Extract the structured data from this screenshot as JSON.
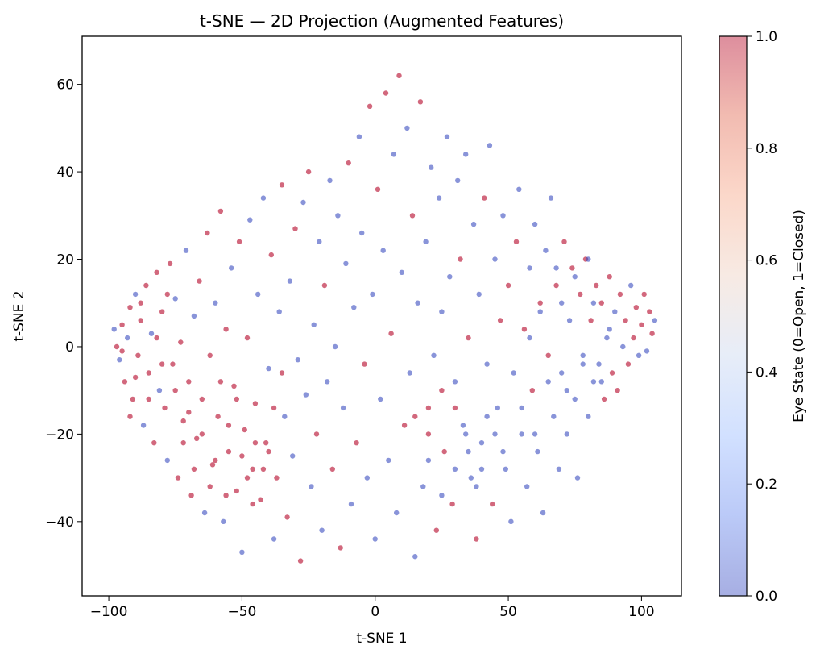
{
  "chart_data": {
    "type": "scatter",
    "title": "t-SNE — 2D Projection (Augmented Features)",
    "xlabel": "t-SNE 1",
    "ylabel": "t-SNE 2",
    "xlim": [
      -110,
      115
    ],
    "ylim": [
      -57,
      71
    ],
    "xticks": [
      -100,
      -50,
      0,
      50,
      100
    ],
    "yticks": [
      -40,
      -20,
      0,
      20,
      40,
      60
    ],
    "xtick_labels": [
      "−100",
      "−50",
      "0",
      "50",
      "100"
    ],
    "ytick_labels": [
      "−40",
      "−20",
      "0",
      "20",
      "40",
      "60"
    ],
    "grid": false,
    "point_alpha": 0.6,
    "colorbar": {
      "label": "Eye State (0=Open, 1=Closed)",
      "range": [
        0,
        1
      ],
      "ticks": [
        0.0,
        0.2,
        0.4,
        0.6,
        0.8,
        1.0
      ],
      "tick_labels": [
        "0.0",
        "0.2",
        "0.4",
        "0.6",
        "0.8",
        "1.0"
      ],
      "colormap": "coolwarm",
      "colors": [
        "#3b4cc0",
        "#6788ee",
        "#9abbff",
        "#c9d7f0",
        "#edd1c2",
        "#f7a889",
        "#e26952",
        "#b40426"
      ]
    },
    "series": [
      {
        "values": [
          [
            -98,
            4,
            0
          ],
          [
            -97,
            0,
            1
          ],
          [
            -96,
            -3,
            0
          ],
          [
            -95,
            5,
            1
          ],
          [
            -94,
            -8,
            1
          ],
          [
            -93,
            2,
            0
          ],
          [
            -92,
            9,
            1
          ],
          [
            -91,
            -12,
            1
          ],
          [
            -90,
            12,
            0
          ],
          [
            -89,
            -2,
            1
          ],
          [
            -88,
            6,
            1
          ],
          [
            -87,
            -18,
            0
          ],
          [
            -86,
            14,
            1
          ],
          [
            -85,
            -6,
            1
          ],
          [
            -84,
            3,
            0
          ],
          [
            -83,
            -22,
            1
          ],
          [
            -82,
            17,
            1
          ],
          [
            -81,
            -10,
            0
          ],
          [
            -80,
            8,
            1
          ],
          [
            -79,
            -14,
            1
          ],
          [
            -78,
            -26,
            0
          ],
          [
            -77,
            19,
            1
          ],
          [
            -76,
            -4,
            1
          ],
          [
            -75,
            11,
            0
          ],
          [
            -74,
            -30,
            1
          ],
          [
            -73,
            1,
            1
          ],
          [
            -72,
            -17,
            1
          ],
          [
            -71,
            22,
            0
          ],
          [
            -70,
            -8,
            1
          ],
          [
            -69,
            -34,
            1
          ],
          [
            -68,
            7,
            0
          ],
          [
            -67,
            -21,
            1
          ],
          [
            -66,
            15,
            1
          ],
          [
            -65,
            -12,
            1
          ],
          [
            -64,
            -38,
            0
          ],
          [
            -63,
            26,
            1
          ],
          [
            -62,
            -2,
            1
          ],
          [
            -61,
            -27,
            1
          ],
          [
            -60,
            10,
            0
          ],
          [
            -59,
            -16,
            1
          ],
          [
            -58,
            31,
            1
          ],
          [
            -57,
            -40,
            0
          ],
          [
            -56,
            4,
            1
          ],
          [
            -55,
            -24,
            1
          ],
          [
            -54,
            18,
            0
          ],
          [
            -53,
            -9,
            1
          ],
          [
            -52,
            -33,
            1
          ],
          [
            -51,
            24,
            1
          ],
          [
            -50,
            -47,
            0
          ],
          [
            -49,
            -19,
            1
          ],
          [
            -48,
            2,
            1
          ],
          [
            -47,
            29,
            0
          ],
          [
            -46,
            -28,
            1
          ],
          [
            -45,
            -13,
            1
          ],
          [
            -44,
            12,
            0
          ],
          [
            -43,
            -35,
            1
          ],
          [
            -42,
            34,
            0
          ],
          [
            -41,
            -22,
            1
          ],
          [
            -40,
            -5,
            0
          ],
          [
            -39,
            21,
            1
          ],
          [
            -38,
            -44,
            0
          ],
          [
            -37,
            -30,
            1
          ],
          [
            -36,
            8,
            0
          ],
          [
            -35,
            37,
            1
          ],
          [
            -34,
            -16,
            0
          ],
          [
            -33,
            -39,
            1
          ],
          [
            -32,
            15,
            0
          ],
          [
            -31,
            -25,
            0
          ],
          [
            -30,
            27,
            1
          ],
          [
            -29,
            -3,
            0
          ],
          [
            -28,
            -49,
            1
          ],
          [
            -27,
            33,
            0
          ],
          [
            -26,
            -11,
            0
          ],
          [
            -25,
            40,
            1
          ],
          [
            -24,
            -32,
            0
          ],
          [
            -23,
            5,
            0
          ],
          [
            -22,
            -20,
            1
          ],
          [
            -21,
            24,
            0
          ],
          [
            -20,
            -42,
            0
          ],
          [
            -19,
            14,
            1
          ],
          [
            -18,
            -8,
            0
          ],
          [
            -17,
            38,
            0
          ],
          [
            -16,
            -28,
            1
          ],
          [
            -15,
            0,
            0
          ],
          [
            -14,
            30,
            0
          ],
          [
            -13,
            -46,
            1
          ],
          [
            -12,
            -14,
            0
          ],
          [
            -11,
            19,
            0
          ],
          [
            -10,
            42,
            1
          ],
          [
            -9,
            -36,
            0
          ],
          [
            -8,
            9,
            0
          ],
          [
            -7,
            -22,
            1
          ],
          [
            -6,
            48,
            0
          ],
          [
            -5,
            26,
            0
          ],
          [
            -4,
            -4,
            1
          ],
          [
            -3,
            -30,
            0
          ],
          [
            -2,
            55,
            1
          ],
          [
            -1,
            12,
            0
          ],
          [
            0,
            -44,
            0
          ],
          [
            1,
            36,
            1
          ],
          [
            2,
            -12,
            0
          ],
          [
            3,
            22,
            0
          ],
          [
            4,
            58,
            1
          ],
          [
            5,
            -26,
            0
          ],
          [
            6,
            3,
            1
          ],
          [
            7,
            44,
            0
          ],
          [
            8,
            -38,
            0
          ],
          [
            9,
            62,
            1
          ],
          [
            10,
            17,
            0
          ],
          [
            11,
            -18,
            1
          ],
          [
            12,
            50,
            0
          ],
          [
            13,
            -6,
            0
          ],
          [
            14,
            30,
            1
          ],
          [
            15,
            -48,
            0
          ],
          [
            16,
            10,
            0
          ],
          [
            17,
            56,
            1
          ],
          [
            18,
            -32,
            0
          ],
          [
            19,
            24,
            0
          ],
          [
            20,
            -14,
            1
          ],
          [
            21,
            41,
            0
          ],
          [
            22,
            -2,
            0
          ],
          [
            23,
            -42,
            1
          ],
          [
            24,
            34,
            0
          ],
          [
            25,
            8,
            0
          ],
          [
            26,
            -24,
            1
          ],
          [
            27,
            48,
            0
          ],
          [
            28,
            16,
            0
          ],
          [
            29,
            -36,
            1
          ],
          [
            30,
            -8,
            0
          ],
          [
            31,
            38,
            0
          ],
          [
            32,
            20,
            1
          ],
          [
            33,
            -18,
            0
          ],
          [
            34,
            44,
            0
          ],
          [
            35,
            2,
            1
          ],
          [
            36,
            -30,
            0
          ],
          [
            37,
            28,
            0
          ],
          [
            38,
            -44,
            1
          ],
          [
            39,
            12,
            0
          ],
          [
            40,
            -22,
            0
          ],
          [
            41,
            34,
            1
          ],
          [
            42,
            -4,
            0
          ],
          [
            43,
            46,
            0
          ],
          [
            44,
            -36,
            1
          ],
          [
            45,
            20,
            0
          ],
          [
            46,
            -14,
            0
          ],
          [
            47,
            6,
            1
          ],
          [
            48,
            30,
            0
          ],
          [
            49,
            -28,
            0
          ],
          [
            50,
            14,
            1
          ],
          [
            51,
            -40,
            0
          ],
          [
            52,
            -6,
            0
          ],
          [
            53,
            24,
            1
          ],
          [
            54,
            36,
            0
          ],
          [
            55,
            -20,
            0
          ],
          [
            56,
            4,
            1
          ],
          [
            57,
            -32,
            0
          ],
          [
            58,
            18,
            0
          ],
          [
            59,
            -10,
            1
          ],
          [
            60,
            28,
            0
          ],
          [
            61,
            -24,
            0
          ],
          [
            62,
            10,
            1
          ],
          [
            63,
            -38,
            0
          ],
          [
            64,
            22,
            0
          ],
          [
            65,
            -2,
            1
          ],
          [
            66,
            34,
            0
          ],
          [
            67,
            -16,
            0
          ],
          [
            68,
            14,
            1
          ],
          [
            69,
            -28,
            0
          ],
          [
            70,
            -6,
            0
          ],
          [
            71,
            24,
            1
          ],
          [
            72,
            -20,
            0
          ],
          [
            73,
            6,
            0
          ],
          [
            74,
            18,
            1
          ],
          [
            75,
            -12,
            0
          ],
          [
            76,
            -30,
            0
          ],
          [
            77,
            12,
            1
          ],
          [
            78,
            -2,
            0
          ],
          [
            79,
            20,
            1
          ],
          [
            80,
            -16,
            0
          ],
          [
            81,
            6,
            1
          ],
          [
            82,
            -8,
            0
          ],
          [
            83,
            14,
            1
          ],
          [
            84,
            -4,
            0
          ],
          [
            85,
            10,
            1
          ],
          [
            86,
            -12,
            1
          ],
          [
            87,
            2,
            0
          ],
          [
            88,
            16,
            1
          ],
          [
            89,
            -6,
            1
          ],
          [
            90,
            8,
            0
          ],
          [
            91,
            -10,
            1
          ],
          [
            92,
            12,
            1
          ],
          [
            93,
            0,
            0
          ],
          [
            94,
            6,
            1
          ],
          [
            95,
            -4,
            1
          ],
          [
            96,
            14,
            0
          ],
          [
            97,
            2,
            1
          ],
          [
            98,
            9,
            1
          ],
          [
            99,
            -2,
            0
          ],
          [
            100,
            5,
            1
          ],
          [
            101,
            12,
            1
          ],
          [
            102,
            -1,
            0
          ],
          [
            103,
            8,
            1
          ],
          [
            104,
            3,
            1
          ],
          [
            105,
            6,
            0
          ],
          [
            -65,
            -20,
            1
          ],
          [
            -60,
            -26,
            1
          ],
          [
            -55,
            -18,
            1
          ],
          [
            -50,
            -25,
            1
          ],
          [
            -45,
            -22,
            1
          ],
          [
            -42,
            -28,
            1
          ],
          [
            -48,
            -30,
            1
          ],
          [
            -52,
            -12,
            1
          ],
          [
            -58,
            -8,
            1
          ],
          [
            -70,
            -15,
            1
          ],
          [
            -75,
            -10,
            1
          ],
          [
            -80,
            -4,
            1
          ],
          [
            -85,
            -12,
            1
          ],
          [
            -90,
            -7,
            1
          ],
          [
            -95,
            -1,
            1
          ],
          [
            -92,
            -16,
            1
          ],
          [
            -88,
            10,
            1
          ],
          [
            -82,
            2,
            1
          ],
          [
            -78,
            12,
            1
          ],
          [
            -72,
            -22,
            1
          ],
          [
            -68,
            -28,
            1
          ],
          [
            -62,
            -32,
            1
          ],
          [
            -56,
            -34,
            1
          ],
          [
            -46,
            -36,
            1
          ],
          [
            -40,
            -24,
            1
          ],
          [
            -38,
            -14,
            1
          ],
          [
            -35,
            -6,
            1
          ],
          [
            15,
            -16,
            1
          ],
          [
            20,
            -20,
            1
          ],
          [
            25,
            -10,
            1
          ],
          [
            30,
            -14,
            1
          ],
          [
            35,
            -24,
            0
          ],
          [
            40,
            -28,
            0
          ],
          [
            45,
            -20,
            0
          ],
          [
            38,
            -32,
            0
          ],
          [
            42,
            -16,
            0
          ],
          [
            48,
            -24,
            0
          ],
          [
            34,
            -20,
            0
          ],
          [
            30,
            -28,
            0
          ],
          [
            25,
            -34,
            0
          ],
          [
            20,
            -26,
            0
          ],
          [
            55,
            -14,
            0
          ],
          [
            60,
            -20,
            0
          ],
          [
            65,
            -8,
            0
          ],
          [
            58,
            2,
            0
          ],
          [
            62,
            8,
            0
          ],
          [
            70,
            10,
            0
          ],
          [
            75,
            16,
            0
          ],
          [
            80,
            20,
            0
          ],
          [
            68,
            18,
            0
          ],
          [
            72,
            -10,
            0
          ],
          [
            78,
            -4,
            0
          ],
          [
            85,
            -8,
            0
          ],
          [
            82,
            10,
            0
          ],
          [
            88,
            4,
            0
          ]
        ]
      }
    ]
  }
}
